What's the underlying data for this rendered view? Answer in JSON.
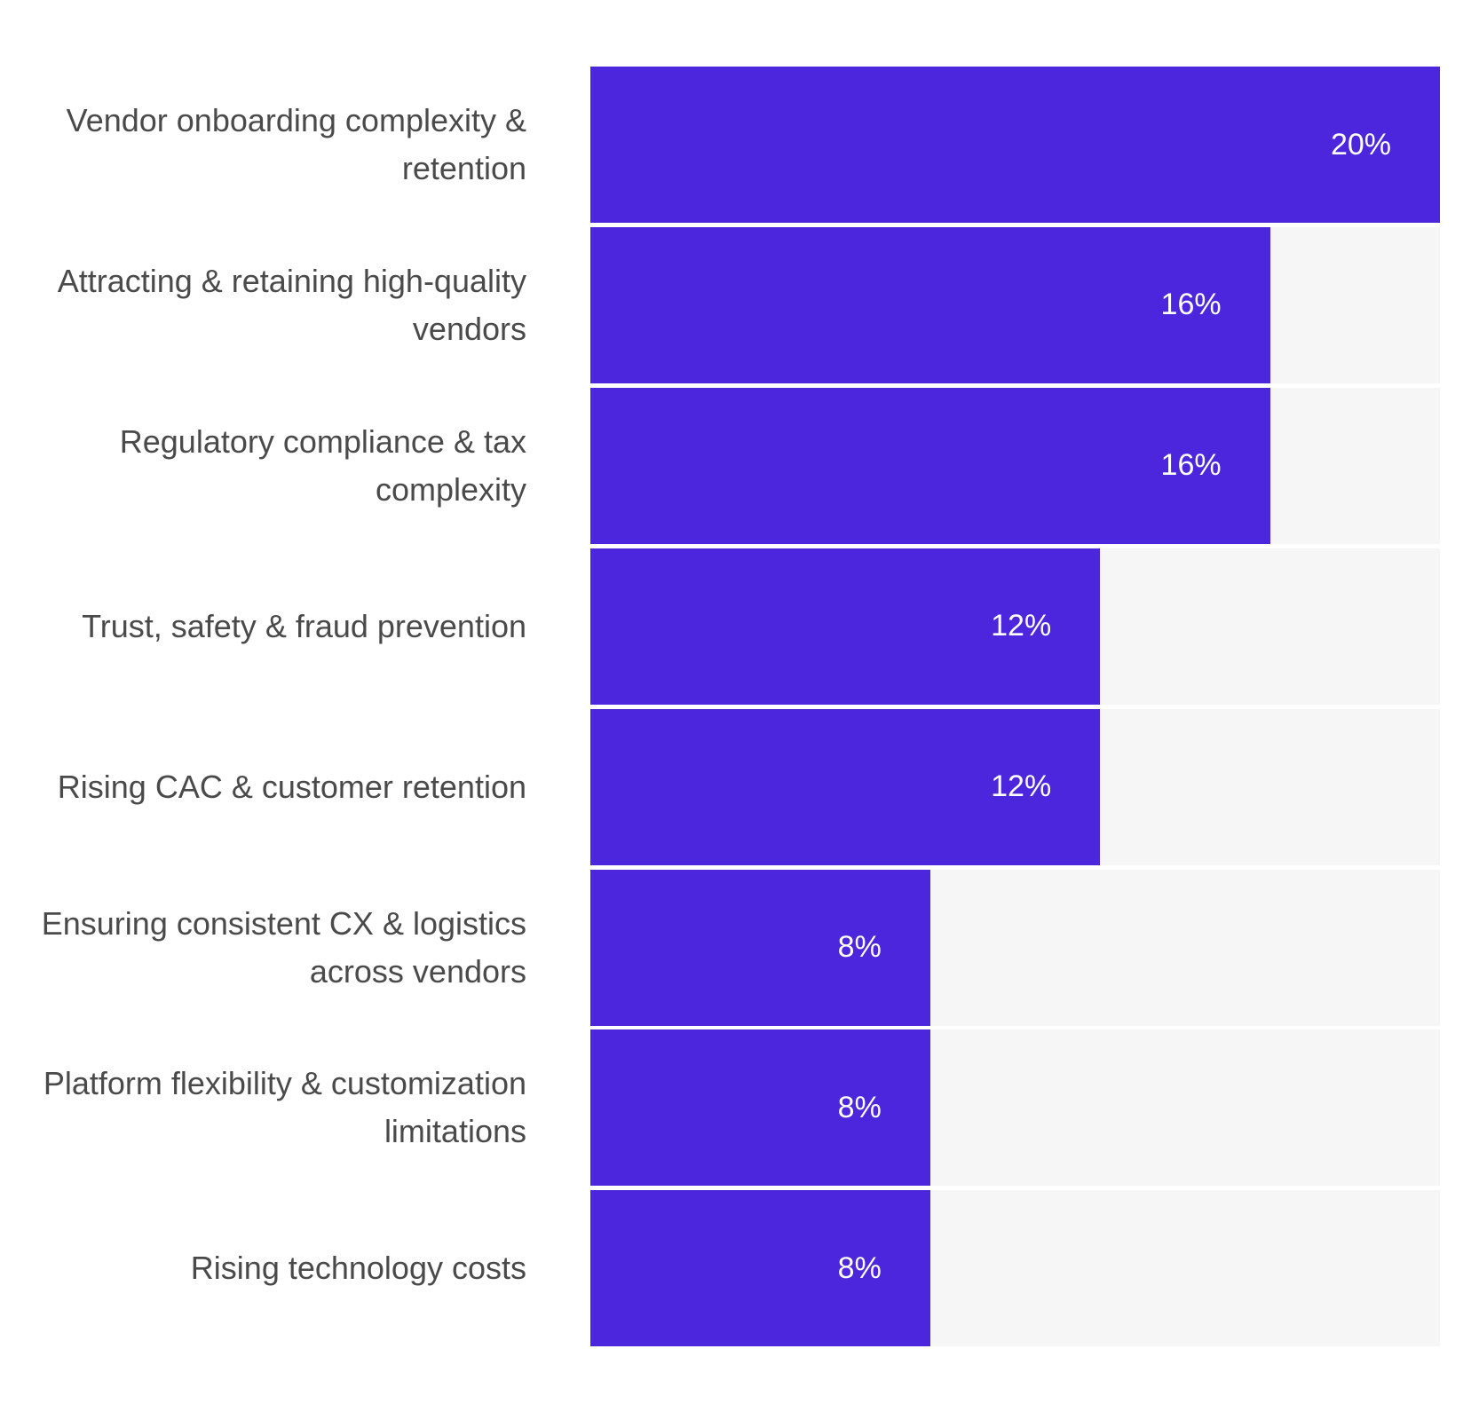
{
  "chart_data": {
    "type": "bar",
    "orientation": "horizontal",
    "categories": [
      "Vendor onboarding complexity & retention",
      "Attracting & retaining high-quality vendors",
      "Regulatory compliance & tax complexity",
      "Trust, safety & fraud prevention",
      "Rising CAC & customer retention",
      "Ensuring consistent CX & logistics across vendors",
      "Platform flexibility & customization limitations",
      "Rising technology costs"
    ],
    "values": [
      20,
      16,
      16,
      12,
      12,
      8,
      8,
      8
    ],
    "value_labels": [
      "20%",
      "16%",
      "16%",
      "12%",
      "12%",
      "8%",
      "8%",
      "8%"
    ],
    "xlim": [
      0,
      20
    ],
    "unit": "%",
    "grid": false,
    "legend": "none"
  },
  "colors": {
    "bar": "#4b26dd",
    "track": "#f6f6f6",
    "category_text": "#4a4a4a",
    "value_text": "#ffffff",
    "background": "#ffffff"
  }
}
